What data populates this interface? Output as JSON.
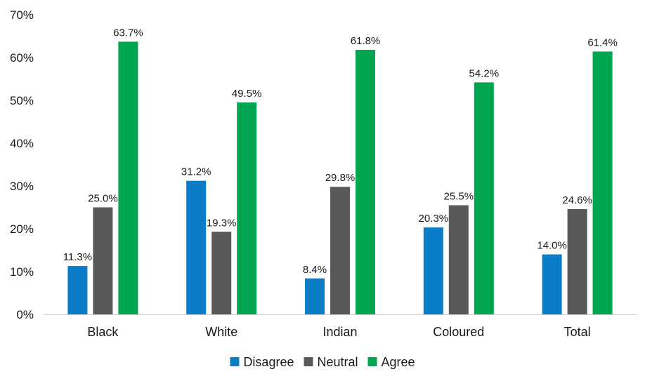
{
  "chart_data": {
    "type": "bar",
    "title": "",
    "xlabel": "",
    "ylabel": "",
    "ylim": [
      0,
      70
    ],
    "yticks": [
      0,
      10,
      20,
      30,
      40,
      50,
      60,
      70
    ],
    "ytick_labels": [
      "0%",
      "10%",
      "20%",
      "30%",
      "40%",
      "50%",
      "60%",
      "70%"
    ],
    "grid": false,
    "legend_position": "bottom-center",
    "categories": [
      "Black",
      "White",
      "Indian",
      "Coloured",
      "Total"
    ],
    "series": [
      {
        "name": "Disagree",
        "color": "#0a7cc8",
        "values": [
          11.3,
          31.2,
          8.4,
          20.3,
          14.0
        ],
        "labels": [
          "11.3%",
          "31.2%",
          "8.4%",
          "20.3%",
          "14.0%"
        ]
      },
      {
        "name": "Neutral",
        "color": "#58595b",
        "values": [
          25.0,
          19.3,
          29.8,
          25.5,
          24.6
        ],
        "labels": [
          "25.0%",
          "19.3%",
          "29.8%",
          "25.5%",
          "24.6%"
        ]
      },
      {
        "name": "Agree",
        "color": "#00a550",
        "values": [
          63.7,
          49.5,
          61.8,
          54.2,
          61.4
        ],
        "labels": [
          "63.7%",
          "49.5%",
          "61.8%",
          "54.2%",
          "61.4%"
        ]
      }
    ]
  }
}
